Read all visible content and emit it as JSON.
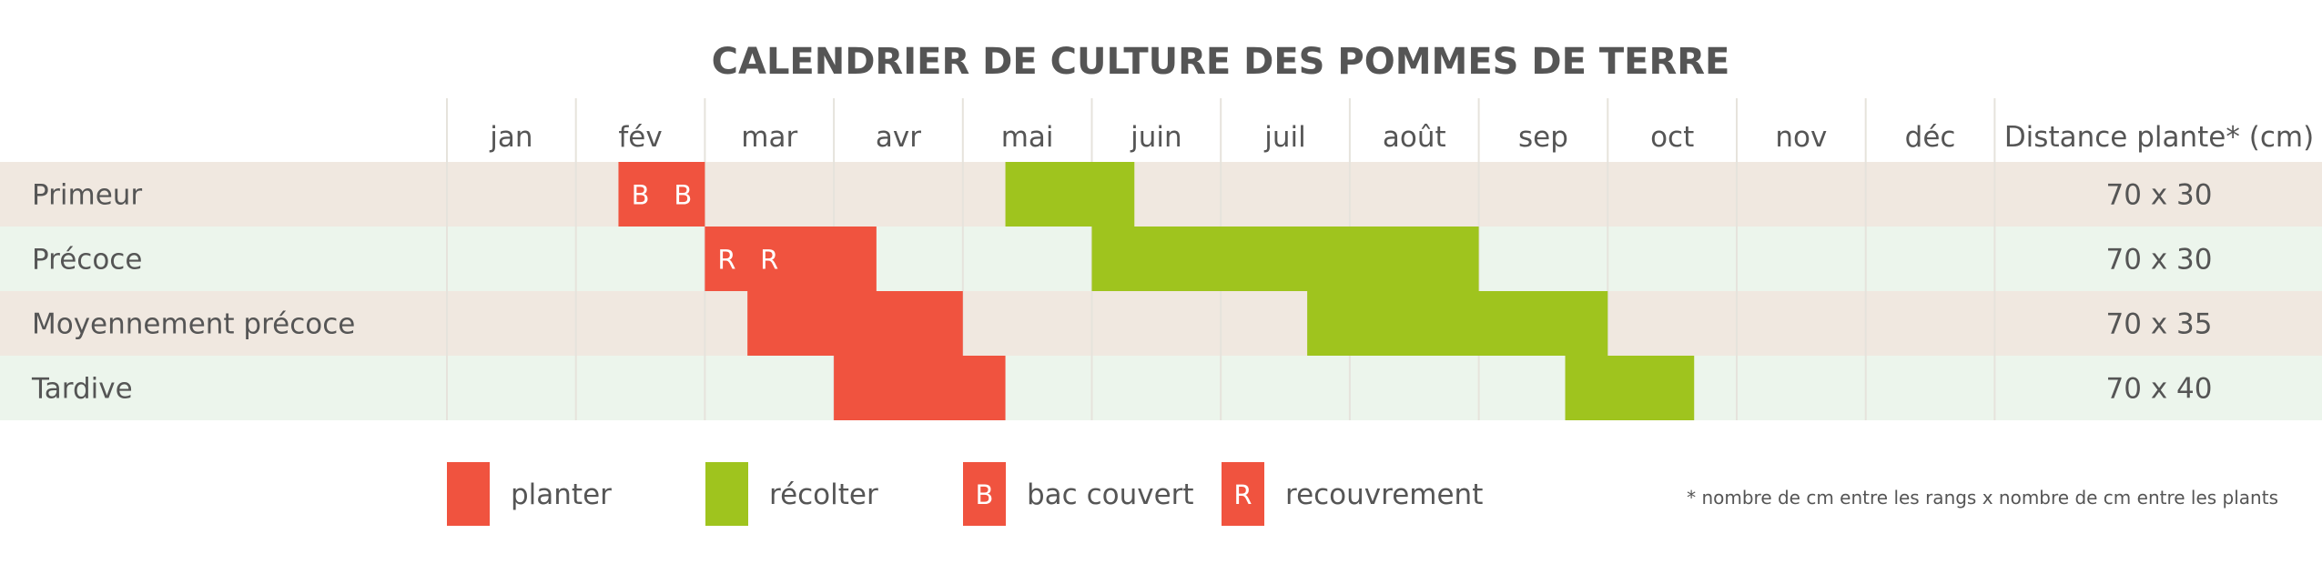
{
  "chart_data": {
    "type": "gantt",
    "title": "CALENDRIER DE CULTURE DES POMMES DE TERRE",
    "months": [
      "jan",
      "fév",
      "mar",
      "avr",
      "mai",
      "juin",
      "juil",
      "août",
      "sep",
      "oct",
      "nov",
      "déc"
    ],
    "distance_header": "Distance plante* (cm)",
    "rows": [
      {
        "label": "Primeur",
        "distance": "70 x 30",
        "plant": [
          1.33,
          2.0
        ],
        "harvest": [
          4.33,
          5.33
        ],
        "markers": [
          {
            "letter": "B",
            "month": 1.5
          },
          {
            "letter": "B",
            "month": 1.83
          }
        ]
      },
      {
        "label": "Précoce",
        "distance": "70 x 30",
        "plant": [
          2.0,
          3.33
        ],
        "harvest": [
          5.0,
          8.0
        ],
        "markers": [
          {
            "letter": "R",
            "month": 2.17
          },
          {
            "letter": "R",
            "month": 2.5
          }
        ]
      },
      {
        "label": "Moyennement précoce",
        "distance": "70 x 35",
        "plant": [
          2.33,
          4.0
        ],
        "harvest": [
          6.67,
          9.0
        ],
        "markers": []
      },
      {
        "label": "Tardive",
        "distance": "70 x 40",
        "plant": [
          3.0,
          4.33
        ],
        "harvest": [
          8.67,
          9.67
        ],
        "markers": []
      }
    ],
    "legend": [
      {
        "key": "plant",
        "label": "planter",
        "letter": ""
      },
      {
        "key": "harvest",
        "label": "récolter",
        "letter": ""
      },
      {
        "key": "plant",
        "label": "bac couvert",
        "letter": "B"
      },
      {
        "key": "plant",
        "label": "recouvrement",
        "letter": "R"
      }
    ],
    "footnote": "* nombre de cm entre les rangs x nombre de cm entre les plants",
    "colors": {
      "plant": "#f0533f",
      "harvest": "#9fc41e",
      "row_odd": "#f0e8e0",
      "row_even": "#ecf5ec",
      "grid": "#e6e3dc",
      "text": "#555555"
    }
  }
}
